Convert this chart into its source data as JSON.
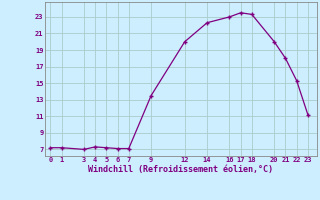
{
  "x": [
    0,
    1,
    3,
    4,
    5,
    6,
    7,
    9,
    12,
    14,
    16,
    17,
    18,
    20,
    21,
    22,
    23
  ],
  "y": [
    7.2,
    7.2,
    7.0,
    7.3,
    7.2,
    7.1,
    7.1,
    13.5,
    20.0,
    22.3,
    23.0,
    23.5,
    23.3,
    20.0,
    18.0,
    15.3,
    11.2
  ],
  "line_color": "#800080",
  "marker_color": "#800080",
  "bg_color": "#cceeff",
  "grid_color": "#aacccc",
  "xlabel": "Windchill (Refroidissement éolien,°C)",
  "xlabel_color": "#800080",
  "tick_color": "#800080",
  "xlim": [
    -0.5,
    23.8
  ],
  "ylim": [
    6.2,
    24.8
  ],
  "xticks": [
    0,
    1,
    3,
    4,
    5,
    6,
    7,
    9,
    12,
    14,
    16,
    17,
    18,
    20,
    21,
    22,
    23
  ],
  "yticks": [
    7,
    9,
    11,
    13,
    15,
    17,
    19,
    21,
    23
  ]
}
